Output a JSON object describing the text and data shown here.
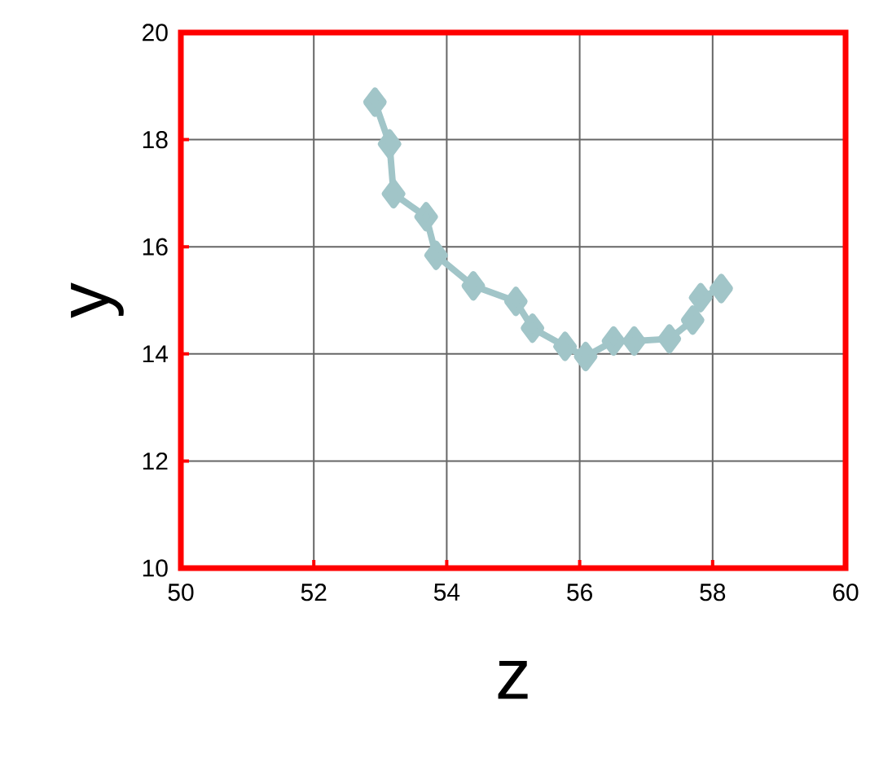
{
  "chart_data": {
    "type": "line",
    "xlabel": "z",
    "ylabel": "y",
    "x": [
      52.92,
      53.14,
      53.2,
      53.69,
      53.84,
      54.4,
      55.04,
      55.29,
      55.78,
      56.09,
      56.51,
      56.82,
      57.35,
      57.7,
      57.82,
      58.13
    ],
    "series": [
      {
        "color": "#a1c5c8",
        "values": [
          18.7,
          17.92,
          16.99,
          16.56,
          15.84,
          15.27,
          14.98,
          14.48,
          14.14,
          13.95,
          14.24,
          14.24,
          14.28,
          14.63,
          15.05,
          15.22
        ]
      }
    ],
    "xlim": [
      50,
      60
    ],
    "ylim": [
      10,
      20
    ],
    "xticks": [
      50,
      52,
      54,
      56,
      58,
      60
    ],
    "yticks": [
      10,
      12,
      14,
      16,
      18,
      20
    ],
    "grid": true,
    "marker": "diamond",
    "line_style": "solid"
  }
}
